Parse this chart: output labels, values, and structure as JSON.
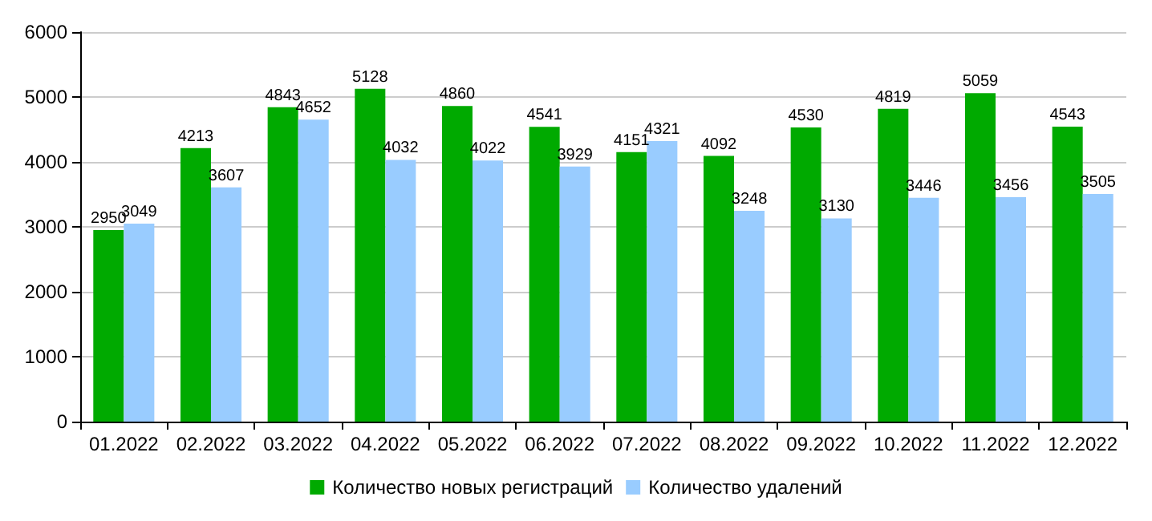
{
  "chart_data": {
    "type": "bar",
    "categories": [
      "01.2022",
      "02.2022",
      "03.2022",
      "04.2022",
      "05.2022",
      "06.2022",
      "07.2022",
      "08.2022",
      "09.2022",
      "10.2022",
      "11.2022",
      "12.2022"
    ],
    "series": [
      {
        "name": "Количество новых регистраций",
        "color": "#00aa00",
        "values": [
          2950,
          4213,
          4843,
          5128,
          4860,
          4541,
          4151,
          4092,
          4530,
          4819,
          5059,
          4543
        ]
      },
      {
        "name": "Количество удалений",
        "color": "#99ccff",
        "values": [
          3049,
          3607,
          4652,
          4032,
          4022,
          3929,
          4321,
          3248,
          3130,
          3446,
          3456,
          3505
        ]
      }
    ],
    "ylim": [
      0,
      6000
    ],
    "yticks": [
      0,
      1000,
      2000,
      3000,
      4000,
      5000,
      6000
    ],
    "grid": "y",
    "legend": "bottom",
    "data_labels": true
  }
}
